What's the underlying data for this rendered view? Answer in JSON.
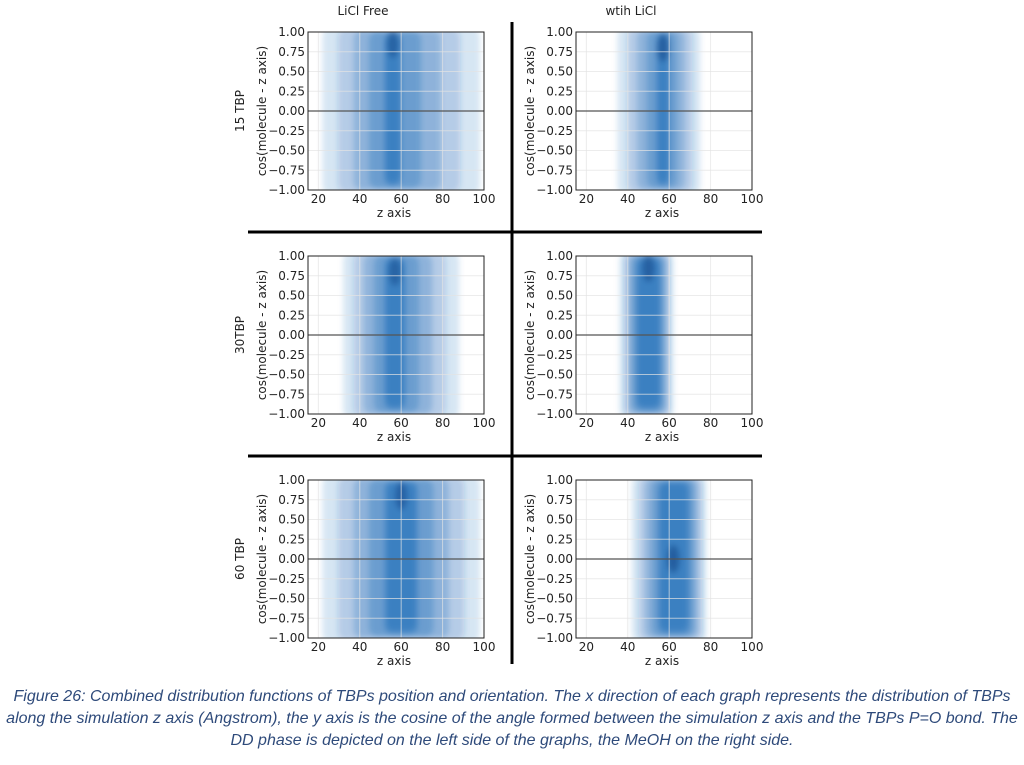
{
  "figure": {
    "column_titles": [
      "LiCl Free",
      "wtih LiCl"
    ],
    "row_labels": [
      "15 TBP",
      "30TBP",
      "60 TBP"
    ]
  },
  "chart_data": [
    {
      "type": "heatmap",
      "panel": "15 TBP / LiCl Free",
      "xlabel": "z axis",
      "ylabel": "cos(molecule - z axis)",
      "xlim": [
        15,
        100
      ],
      "ylim": [
        -1,
        1
      ],
      "xticks": [
        20,
        40,
        60,
        80,
        100
      ],
      "yticks": [
        1.0,
        0.75,
        0.5,
        0.25,
        0.0,
        -0.25,
        -0.5,
        -0.75,
        -1.0
      ],
      "grid": true,
      "reference_line_y": 0,
      "density_center_x": 56,
      "density_core_x_range": [
        52,
        60
      ],
      "density_extent_x_range": [
        22,
        98
      ],
      "peak_y": 0.85,
      "peak_intensity": 0.85
    },
    {
      "type": "heatmap",
      "panel": "15 TBP / wtih LiCl",
      "xlabel": "z axis",
      "ylabel": "cos(molecule - z axis)",
      "xlim": [
        15,
        100
      ],
      "ylim": [
        -1,
        1
      ],
      "xticks": [
        20,
        40,
        60,
        80,
        100
      ],
      "yticks": [
        1.0,
        0.75,
        0.5,
        0.25,
        0.0,
        -0.25,
        -0.5,
        -0.75,
        -1.0
      ],
      "grid": true,
      "reference_line_y": 0,
      "density_center_x": 57,
      "density_core_x_range": [
        54,
        60
      ],
      "density_extent_x_range": [
        35,
        75
      ],
      "peak_y": 0.8,
      "peak_intensity": 0.95
    },
    {
      "type": "heatmap",
      "panel": "30TBP / LiCl Free",
      "xlabel": "z axis",
      "ylabel": "cos(molecule - z axis)",
      "xlim": [
        15,
        100
      ],
      "ylim": [
        -1,
        1
      ],
      "xticks": [
        20,
        40,
        60,
        80,
        100
      ],
      "yticks": [
        1.0,
        0.75,
        0.5,
        0.25,
        0.0,
        -0.25,
        -0.5,
        -0.75,
        -1.0
      ],
      "grid": true,
      "reference_line_y": 0,
      "density_center_x": 57,
      "density_core_x_range": [
        52,
        62
      ],
      "density_extent_x_range": [
        32,
        88
      ],
      "peak_y": 0.8,
      "peak_intensity": 0.85
    },
    {
      "type": "heatmap",
      "panel": "30TBP / wtih LiCl",
      "xlabel": "z axis",
      "ylabel": "cos(molecule - z axis)",
      "xlim": [
        15,
        100
      ],
      "ylim": [
        -1,
        1
      ],
      "xticks": [
        20,
        40,
        60,
        80,
        100
      ],
      "yticks": [
        1.0,
        0.75,
        0.5,
        0.25,
        0.0,
        -0.25,
        -0.5,
        -0.75,
        -1.0
      ],
      "grid": true,
      "reference_line_y": 0,
      "density_center_x": 50,
      "density_core_x_range": [
        44,
        56
      ],
      "density_extent_x_range": [
        36,
        62
      ],
      "peak_y": 0.85,
      "peak_intensity": 0.95
    },
    {
      "type": "heatmap",
      "panel": "60 TBP / LiCl Free",
      "xlabel": "z axis",
      "ylabel": "cos(molecule - z axis)",
      "xlim": [
        15,
        100
      ],
      "ylim": [
        -1,
        1
      ],
      "xticks": [
        20,
        40,
        60,
        80,
        100
      ],
      "yticks": [
        1.0,
        0.75,
        0.5,
        0.25,
        0.0,
        -0.25,
        -0.5,
        -0.75,
        -1.0
      ],
      "grid": true,
      "reference_line_y": 0,
      "density_center_x": 60,
      "density_core_x_range": [
        52,
        68
      ],
      "density_extent_x_range": [
        22,
        98
      ],
      "peak_y": 0.8,
      "peak_intensity": 0.9
    },
    {
      "type": "heatmap",
      "panel": "60 TBP / wtih LiCl",
      "xlabel": "z axis",
      "ylabel": "cos(molecule - z axis)",
      "xlim": [
        15,
        100
      ],
      "ylim": [
        -1,
        1
      ],
      "xticks": [
        20,
        40,
        60,
        80,
        100
      ],
      "yticks": [
        1.0,
        0.75,
        0.5,
        0.25,
        0.0,
        -0.25,
        -0.5,
        -0.75,
        -1.0
      ],
      "grid": true,
      "reference_line_y": 0,
      "density_center_x": 62,
      "density_core_x_range": [
        55,
        70
      ],
      "density_extent_x_range": [
        42,
        78
      ],
      "peak_y": 0.0,
      "peak_intensity": 1.0
    }
  ],
  "caption": "Figure 26: Combined distribution functions of TBPs position and orientation. The x direction of each graph represents the distribution of TBPs along the simulation z axis (Angstrom), the y axis is the cosine of the angle formed between the simulation z axis and the TBPs P=O bond. The DD phase is depicted on the left side of the graphs, the MeOH on the right side.",
  "colors": {
    "density": "#1565b5",
    "grid": "#e4e4e4",
    "axis": "#222222",
    "divider": "#000000",
    "caption": "#2e4a7a"
  }
}
